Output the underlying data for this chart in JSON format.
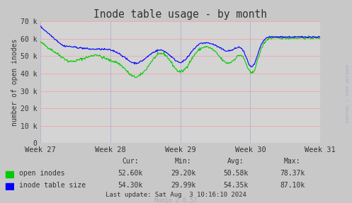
{
  "title": "Inode table usage - by month",
  "ylabel": "number of open inodes",
  "background_color": "#c8c8c8",
  "plot_bg_color": "#d4d4d4",
  "grid_color_h": "#ff9999",
  "grid_color_v": "#aaaacc",
  "ylim": [
    0,
    70000
  ],
  "yticks": [
    0,
    10000,
    20000,
    30000,
    40000,
    50000,
    60000,
    70000
  ],
  "ytick_labels": [
    "0",
    "10 k",
    "20 k",
    "30 k",
    "40 k",
    "50 k",
    "60 k",
    "70 k"
  ],
  "week_labels": [
    "Week 27",
    "Week 28",
    "Week 29",
    "Week 30",
    "Week 31"
  ],
  "green_color": "#00cc00",
  "blue_color": "#0000ff",
  "text_color": "#333333",
  "light_text_color": "#aaaaaa",
  "watermark_color": "#aaaacc",
  "open_inodes_cur": "52.60k",
  "open_inodes_min": "29.20k",
  "open_inodes_avg": "50.58k",
  "open_inodes_max": "78.37k",
  "inode_table_cur": "54.30k",
  "inode_table_min": "29.99k",
  "inode_table_avg": "54.35k",
  "inode_table_max": "87.10k",
  "footer": "Last update: Sat Aug  3 10:16:10 2024",
  "munin_version": "Munin 2.0.57",
  "watermark": "RRDTOOL / TOBI OETIKER"
}
